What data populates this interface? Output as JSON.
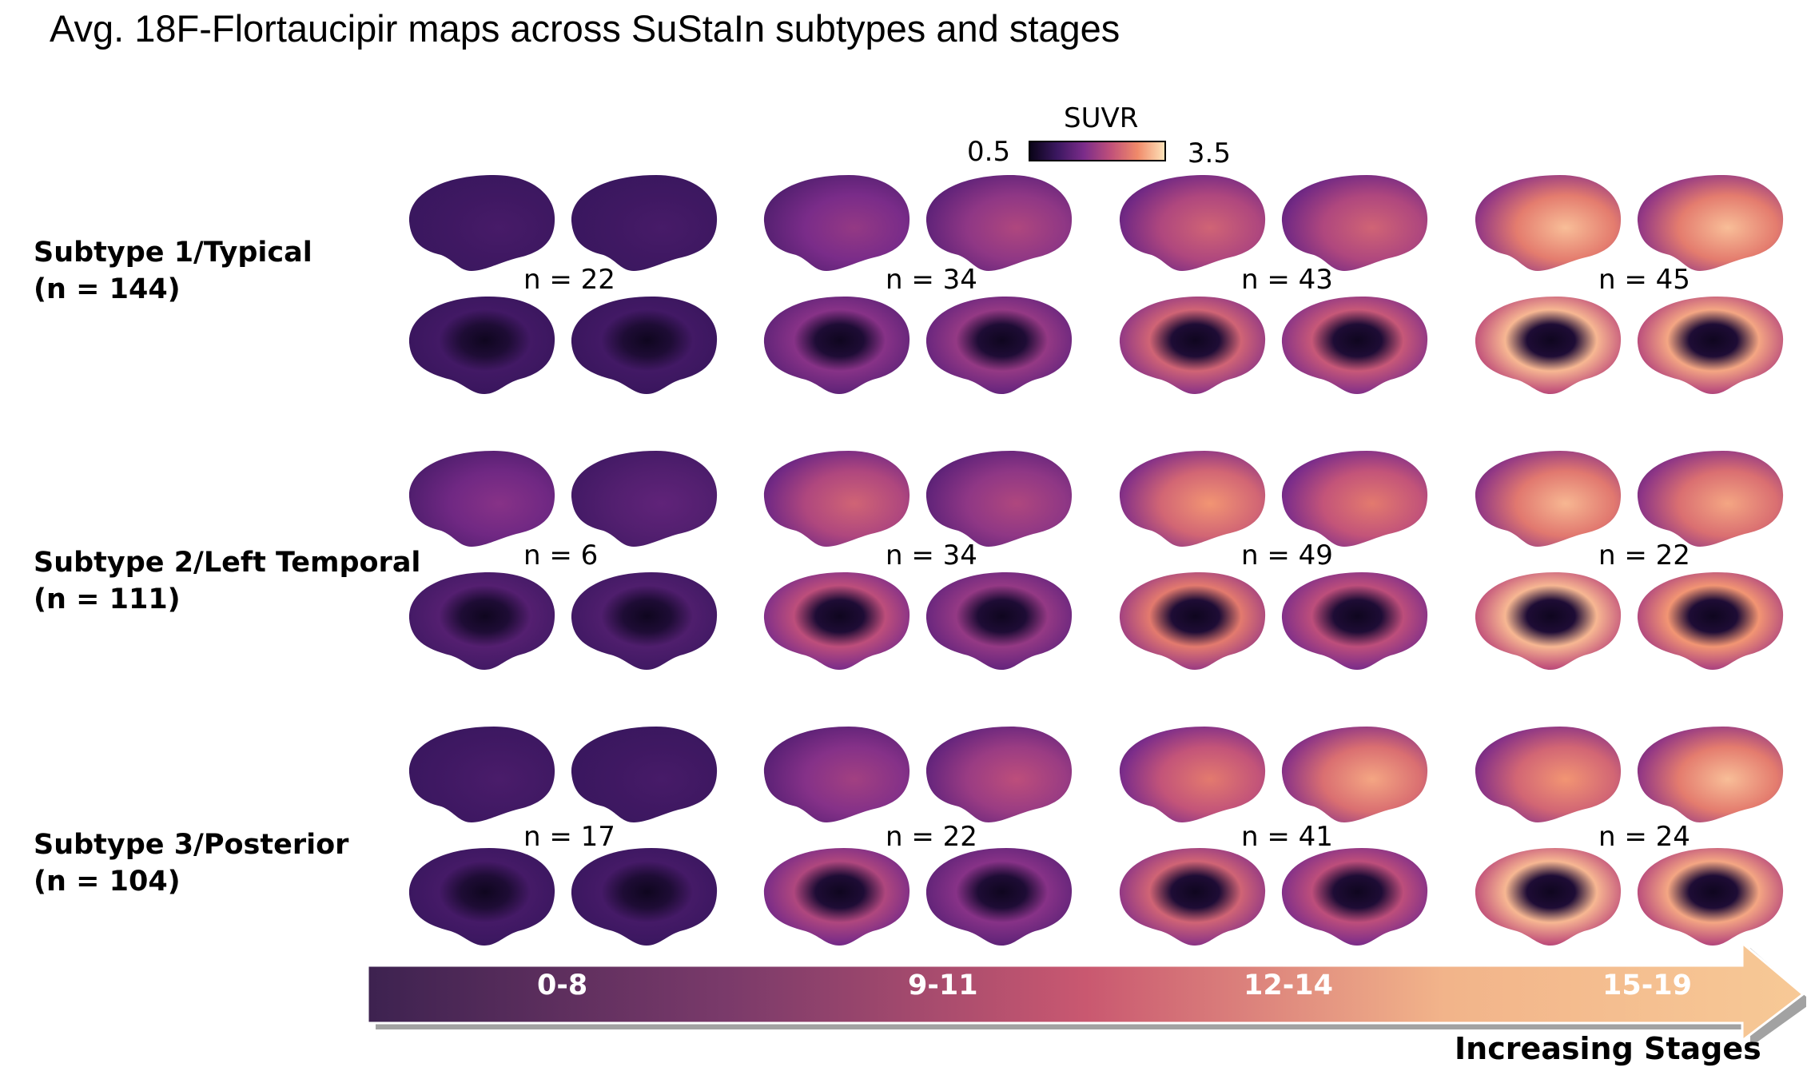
{
  "title": "Avg. 18F-Flortaucipir maps across SuStaIn subtypes and stages",
  "colorbar": {
    "label": "SUVR",
    "min": "0.5",
    "max": "3.5",
    "stops": [
      "#0a0418",
      "#3b1760",
      "#7b2c8a",
      "#c0507a",
      "#f08a6a",
      "#fde2b8"
    ]
  },
  "subtypes": [
    {
      "name": "Subtype 1/Typical",
      "count": "(n = 144)",
      "stage_n": [
        "n = 22",
        "n = 34",
        "n = 43",
        "n = 45"
      ],
      "intensity": [
        [
          0.05,
          0.05,
          0.03,
          0.03
        ],
        [
          0.35,
          0.45,
          0.3,
          0.35
        ],
        [
          0.6,
          0.6,
          0.6,
          0.55
        ],
        [
          0.92,
          0.92,
          0.9,
          0.85
        ]
      ]
    },
    {
      "name": "Subtype 2/Left Temporal",
      "count": "(n = 111)",
      "stage_n": [
        "n = 6",
        "n = 34",
        "n = 49",
        "n = 22"
      ],
      "intensity": [
        [
          0.3,
          0.15,
          0.1,
          0.08
        ],
        [
          0.6,
          0.45,
          0.5,
          0.35
        ],
        [
          0.8,
          0.7,
          0.7,
          0.5
        ],
        [
          0.9,
          0.85,
          0.9,
          0.8
        ]
      ]
    },
    {
      "name": "Subtype 3/Posterior",
      "count": "(n = 104)",
      "stage_n": [
        "n = 17",
        "n = 22",
        "n = 41",
        "n = 24"
      ],
      "intensity": [
        [
          0.06,
          0.05,
          0.04,
          0.04
        ],
        [
          0.4,
          0.5,
          0.45,
          0.3
        ],
        [
          0.7,
          0.85,
          0.6,
          0.5
        ],
        [
          0.8,
          0.92,
          0.9,
          0.85
        ]
      ]
    }
  ],
  "stages": {
    "labels": [
      "0-8",
      "9-11",
      "12-14",
      "15-19"
    ],
    "caption": "Increasing Stages",
    "gradient": [
      "#3d2250",
      "#7a3a6a",
      "#c95870",
      "#f2b48a",
      "#f7c996"
    ]
  }
}
